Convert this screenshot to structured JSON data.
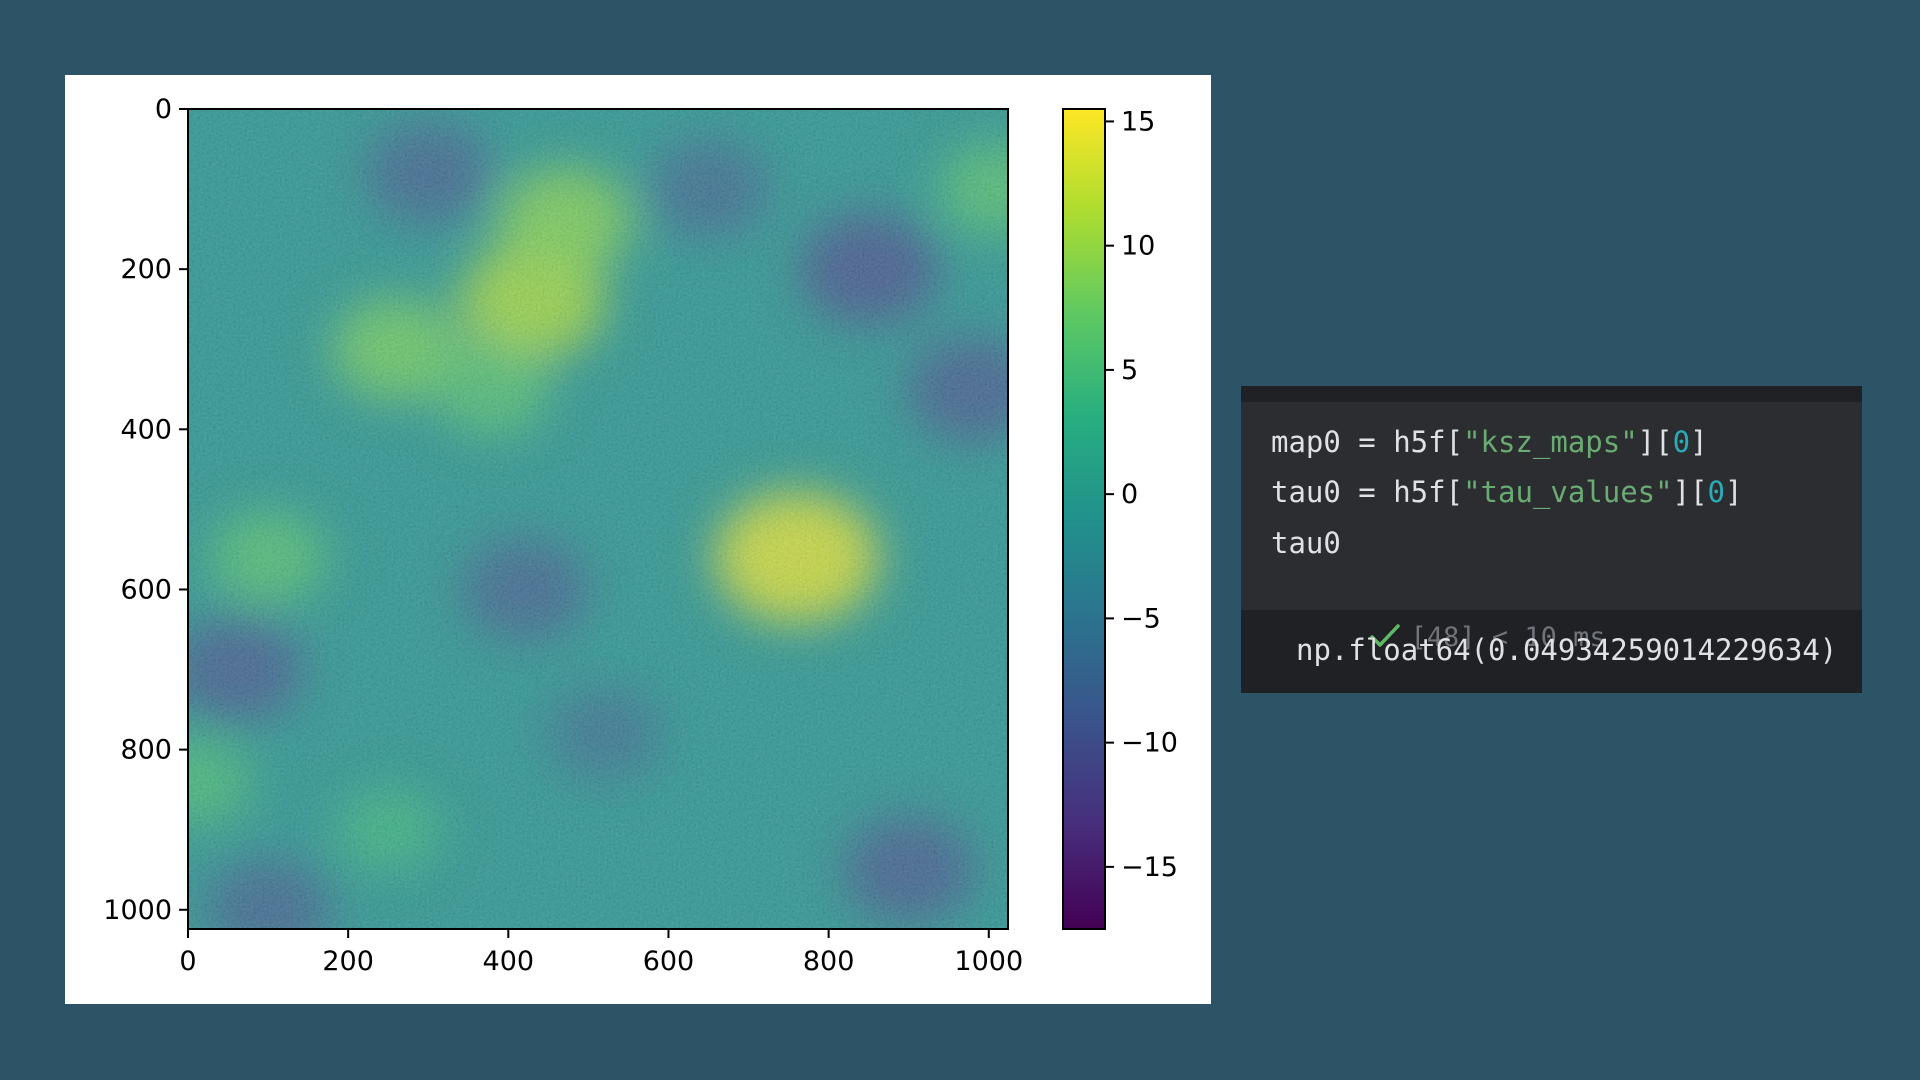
{
  "plot": {
    "chart_data": {
      "type": "heatmap",
      "title": "",
      "xlabel": "",
      "ylabel": "",
      "x_ticks": [
        "0",
        "200",
        "400",
        "600",
        "800",
        "1000"
      ],
      "y_ticks": [
        "0",
        "200",
        "400",
        "600",
        "800",
        "1000"
      ],
      "xlim": [
        0,
        1024
      ],
      "ylim": [
        1024,
        0
      ],
      "colormap": "viridis",
      "colorbar": {
        "range": [
          -17.5,
          15.5
        ],
        "ticks": [
          "15",
          "10",
          "5",
          "0",
          "−5",
          "−10",
          "−15"
        ]
      },
      "hotspots": [
        {
          "x": 760,
          "y": 560,
          "value": 14
        },
        {
          "x": 430,
          "y": 240,
          "value": 11
        },
        {
          "x": 470,
          "y": 140,
          "value": 9
        },
        {
          "x": 260,
          "y": 300,
          "value": 8
        },
        {
          "x": 100,
          "y": 560,
          "value": 6
        },
        {
          "x": 380,
          "y": 350,
          "value": 6
        },
        {
          "x": 1010,
          "y": 100,
          "value": 6
        },
        {
          "x": 250,
          "y": 900,
          "value": 4
        },
        {
          "x": 10,
          "y": 840,
          "value": 5
        }
      ],
      "coldspots": [
        {
          "x": 850,
          "y": 200,
          "value": -10
        },
        {
          "x": 300,
          "y": 80,
          "value": -8
        },
        {
          "x": 980,
          "y": 350,
          "value": -9
        },
        {
          "x": 900,
          "y": 950,
          "value": -9
        },
        {
          "x": 60,
          "y": 700,
          "value": -9
        },
        {
          "x": 420,
          "y": 600,
          "value": -8
        },
        {
          "x": 650,
          "y": 100,
          "value": -7
        },
        {
          "x": 100,
          "y": 1000,
          "value": -8
        },
        {
          "x": 520,
          "y": 780,
          "value": -6
        }
      ]
    }
  },
  "cell": {
    "code": {
      "line1": {
        "pre": "map0 = h5f[",
        "str": "\"ksz_maps\"",
        "mid": "][",
        "num": "0",
        "post": "]"
      },
      "line2": {
        "pre": "tau0 = h5f[",
        "str": "\"tau_values\"",
        "mid": "][",
        "num": "0",
        "post": "]"
      },
      "line3": "tau0"
    },
    "status": {
      "icon": "check-icon",
      "text": "[48] < 10 ms",
      "icon_color": "#5fb865"
    },
    "output": "np.float64(0.04934259014229634)"
  }
}
